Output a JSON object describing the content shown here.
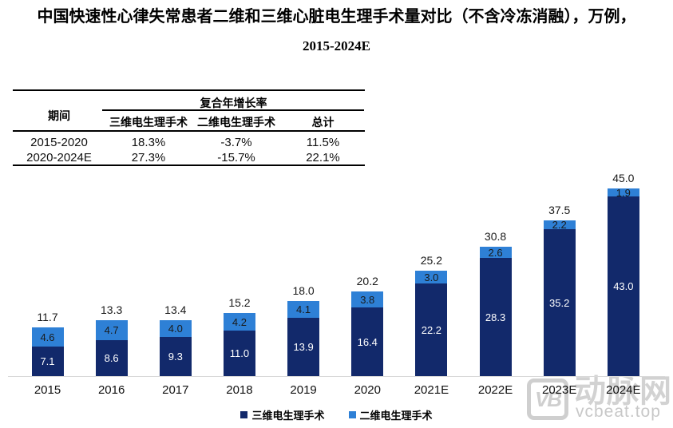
{
  "title": {
    "line1": "中国快速性心律失常患者二维和三维心脏电生理手术量对比（不含冷冻消融），万例，",
    "line2": "2015-2024E"
  },
  "table": {
    "period_header": "期间",
    "cagr_header": "复合年增长率",
    "columns": [
      "三维电生理手术",
      "二维电生理手术",
      "总计"
    ],
    "rows": [
      {
        "period": "2015-2020",
        "threeD": "18.3%",
        "twoD": "-3.7%",
        "total": "11.5%"
      },
      {
        "period": "2020-2024E",
        "threeD": "27.3%",
        "twoD": "-15.7%",
        "total": "22.1%"
      }
    ]
  },
  "chart_data": {
    "type": "bar",
    "stacked": true,
    "unit": "万例",
    "categories": [
      "2015",
      "2016",
      "2017",
      "2018",
      "2019",
      "2020",
      "2021E",
      "2022E",
      "2023E",
      "2024E"
    ],
    "series": [
      {
        "name": "三维电生理手术",
        "color": "#12296b",
        "values": [
          7.1,
          8.6,
          9.3,
          11.0,
          13.9,
          16.4,
          22.2,
          28.3,
          35.2,
          43.0
        ]
      },
      {
        "name": "二维电生理手术",
        "color": "#2e80d6",
        "values": [
          4.6,
          4.7,
          4.0,
          4.2,
          4.1,
          3.8,
          3.0,
          2.6,
          2.2,
          1.9
        ]
      }
    ],
    "totals": [
      11.7,
      13.3,
      13.4,
      15.2,
      18.0,
      20.2,
      25.2,
      30.8,
      37.5,
      45.0
    ],
    "ylim": [
      0,
      45
    ],
    "grid": false,
    "legend_position": "bottom",
    "axis_line_color": "#d9d9d9"
  },
  "watermark": {
    "logo_text": "VB",
    "brand": "动脉网",
    "site": "vcbeat.top"
  }
}
